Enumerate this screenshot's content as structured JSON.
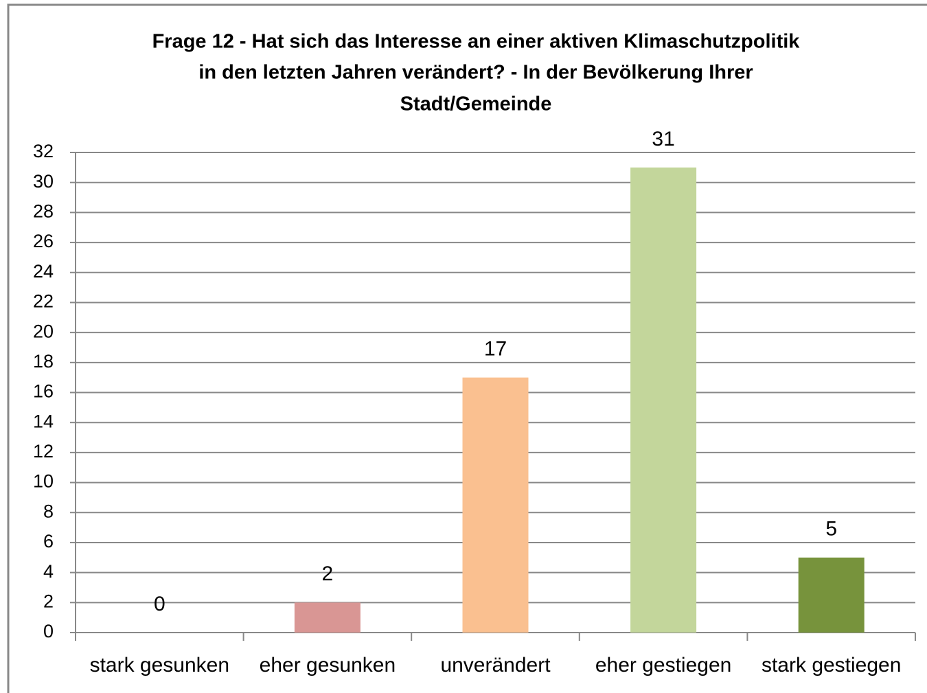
{
  "chart_data": {
    "type": "bar",
    "title": [
      "Frage 12 - Hat sich das Interesse an einer aktiven Klimaschutzpolitik",
      "in den letzten Jahren verändert? - In der Bevölkerung Ihrer",
      "Stadt/Gemeinde"
    ],
    "categories": [
      "stark gesunken",
      "eher gesunken",
      "unverändert",
      "eher gestiegen",
      "stark gestiegen"
    ],
    "values": [
      0,
      2,
      17,
      31,
      5
    ],
    "colors": [
      "#c0504d",
      "#d99694",
      "#fac090",
      "#c3d69b",
      "#77933c"
    ],
    "ylim": [
      0,
      32
    ],
    "yticks": [
      0,
      2,
      4,
      6,
      8,
      10,
      12,
      14,
      16,
      18,
      20,
      22,
      24,
      26,
      28,
      30,
      32
    ],
    "grid": true
  }
}
